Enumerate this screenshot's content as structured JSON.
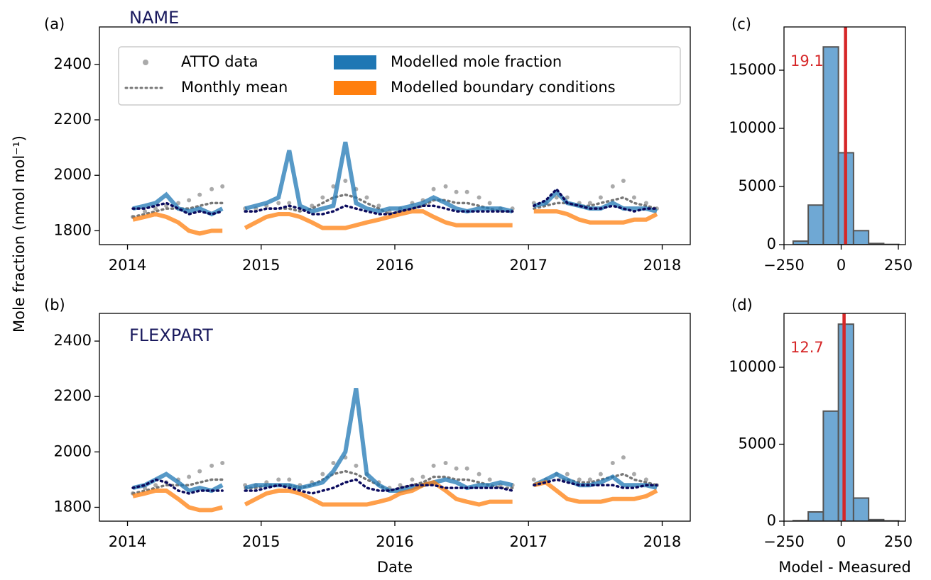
{
  "chart_data": [
    {
      "type": "line",
      "panel_label": "(a)",
      "annotation": "NAME",
      "ylabel": "Mole fraction (nmol mol⁻¹)",
      "xlim": [
        2013.79,
        2018.21
      ],
      "xticks": [
        2014,
        2015,
        2016,
        2017,
        2018
      ],
      "ylim": [
        1750,
        2535
      ],
      "yticks": [
        1800,
        2000,
        2200,
        2400
      ],
      "legend": "upper left",
      "x": [
        2014.04,
        2014.13,
        2014.21,
        2014.29,
        2014.38,
        2014.46,
        2014.54,
        2014.63,
        2014.71,
        2014.79,
        2014.88,
        2014.96,
        2015.04,
        2015.13,
        2015.21,
        2015.29,
        2015.38,
        2015.46,
        2015.54,
        2015.63,
        2015.71,
        2015.79,
        2015.88,
        2015.96,
        2016.04,
        2016.13,
        2016.21,
        2016.29,
        2016.38,
        2016.46,
        2016.54,
        2016.63,
        2016.71,
        2016.79,
        2016.88,
        2016.96,
        2017.04,
        2017.13,
        2017.21,
        2017.29,
        2017.38,
        2017.46,
        2017.54,
        2017.63,
        2017.71,
        2017.79,
        2017.88,
        2017.96
      ],
      "series": [
        {
          "name": "ATTO data",
          "style": "scatter",
          "color": "#aaaaaa",
          "values": [
            1850,
            1870,
            1880,
            1890,
            1900,
            1910,
            1930,
            1950,
            1960,
            null,
            1880,
            1880,
            1890,
            1900,
            1900,
            1880,
            1890,
            1920,
            1960,
            1980,
            1950,
            1920,
            1890,
            1870,
            1880,
            1900,
            1910,
            1950,
            1960,
            1940,
            1940,
            1920,
            1900,
            1880,
            1880,
            null,
            1900,
            1900,
            1920,
            1920,
            1900,
            1900,
            1920,
            1960,
            1980,
            1920,
            1900,
            1880
          ]
        },
        {
          "name": "Monthly mean",
          "style": "dotted",
          "color": "#777777",
          "values": [
            1850,
            1860,
            1870,
            1880,
            1880,
            1880,
            1890,
            1900,
            1900,
            null,
            1870,
            1870,
            1880,
            1880,
            1880,
            1870,
            1880,
            1900,
            1920,
            1930,
            1920,
            1900,
            1880,
            1860,
            1870,
            1880,
            1890,
            1910,
            1910,
            1900,
            1900,
            1890,
            1880,
            1870,
            1870,
            null,
            1880,
            1890,
            1900,
            1900,
            1890,
            1890,
            1900,
            1910,
            1920,
            1900,
            1890,
            1880
          ]
        },
        {
          "name": "Modelled mole fraction",
          "style": "line",
          "color": "#1f77b4",
          "values": [
            1880,
            1890,
            1900,
            1930,
            1880,
            1870,
            1880,
            1860,
            1880,
            null,
            1880,
            1890,
            1900,
            1920,
            2090,
            1890,
            1870,
            1880,
            1890,
            2120,
            1900,
            1880,
            1870,
            1880,
            1880,
            1890,
            1900,
            1920,
            1900,
            1880,
            1870,
            1880,
            1880,
            1880,
            1870,
            null,
            1890,
            1900,
            1940,
            1900,
            1890,
            1880,
            1880,
            1900,
            1880,
            1880,
            1880,
            1870
          ]
        },
        {
          "name": "Modelled boundary conditions",
          "style": "line",
          "color": "#ff7f0e",
          "values": [
            1840,
            1850,
            1860,
            1850,
            1830,
            1800,
            1790,
            1800,
            1800,
            null,
            1810,
            1830,
            1850,
            1860,
            1860,
            1850,
            1830,
            1810,
            1810,
            1810,
            1820,
            1830,
            1840,
            1850,
            1860,
            1870,
            1870,
            1850,
            1830,
            1820,
            1820,
            1820,
            1820,
            1820,
            1820,
            null,
            1870,
            1870,
            1870,
            1860,
            1840,
            1830,
            1830,
            1830,
            1830,
            1840,
            1840,
            1860
          ]
        },
        {
          "style": "dotted",
          "color": "#0b0b5e",
          "values": [
            1880,
            1880,
            1890,
            1900,
            1880,
            1860,
            1870,
            1860,
            1870,
            null,
            1870,
            1870,
            1880,
            1880,
            1890,
            1880,
            1860,
            1860,
            1870,
            1890,
            1880,
            1870,
            1860,
            1860,
            1870,
            1880,
            1890,
            1890,
            1880,
            1870,
            1870,
            1870,
            1870,
            1870,
            1870,
            null,
            1890,
            1910,
            1950,
            1900,
            1890,
            1880,
            1880,
            1890,
            1880,
            1870,
            1880,
            1880
          ]
        }
      ]
    },
    {
      "type": "line",
      "panel_label": "(b)",
      "annotation": "FLEXPART",
      "xlabel": "Date",
      "xlim": [
        2013.79,
        2018.21
      ],
      "xticks": [
        2014,
        2015,
        2016,
        2017,
        2018
      ],
      "ylim": [
        1750,
        2500
      ],
      "yticks": [
        1800,
        2000,
        2200,
        2400
      ],
      "x": [
        2014.04,
        2014.13,
        2014.21,
        2014.29,
        2014.38,
        2014.46,
        2014.54,
        2014.63,
        2014.71,
        2014.79,
        2014.88,
        2014.96,
        2015.04,
        2015.13,
        2015.21,
        2015.29,
        2015.38,
        2015.46,
        2015.54,
        2015.63,
        2015.71,
        2015.79,
        2015.88,
        2015.96,
        2016.04,
        2016.13,
        2016.21,
        2016.29,
        2016.38,
        2016.46,
        2016.54,
        2016.63,
        2016.71,
        2016.79,
        2016.88,
        2016.96,
        2017.04,
        2017.13,
        2017.21,
        2017.29,
        2017.38,
        2017.46,
        2017.54,
        2017.63,
        2017.71,
        2017.79,
        2017.88,
        2017.96
      ],
      "series": [
        {
          "style": "scatter",
          "color": "#aaaaaa",
          "values": [
            1850,
            1870,
            1880,
            1890,
            1900,
            1910,
            1930,
            1950,
            1960,
            null,
            1880,
            1880,
            1890,
            1900,
            1900,
            1880,
            1890,
            1920,
            1960,
            1980,
            1950,
            1920,
            1890,
            1870,
            1880,
            1900,
            1910,
            1950,
            1960,
            1940,
            1940,
            1920,
            1900,
            1880,
            1880,
            null,
            1900,
            1900,
            1920,
            1920,
            1900,
            1900,
            1920,
            1960,
            1980,
            1920,
            1900,
            1880
          ]
        },
        {
          "style": "dotted",
          "color": "#777777",
          "values": [
            1850,
            1860,
            1870,
            1880,
            1880,
            1880,
            1890,
            1900,
            1900,
            null,
            1870,
            1870,
            1880,
            1880,
            1880,
            1870,
            1880,
            1900,
            1920,
            1930,
            1920,
            1900,
            1880,
            1860,
            1870,
            1880,
            1890,
            1910,
            1910,
            1900,
            1900,
            1890,
            1880,
            1870,
            1870,
            null,
            1880,
            1890,
            1900,
            1900,
            1890,
            1890,
            1900,
            1910,
            1920,
            1900,
            1890,
            1880
          ]
        },
        {
          "style": "line",
          "color": "#1f77b4",
          "values": [
            1870,
            1880,
            1900,
            1920,
            1890,
            1860,
            1870,
            1860,
            1880,
            null,
            1870,
            1880,
            1880,
            1880,
            1880,
            1870,
            1880,
            1890,
            1930,
            2000,
            2230,
            1920,
            1880,
            1860,
            1860,
            1870,
            1880,
            1890,
            1900,
            1890,
            1870,
            1880,
            1880,
            1890,
            1880,
            null,
            1880,
            1900,
            1920,
            1900,
            1880,
            1880,
            1890,
            1910,
            1880,
            1880,
            1880,
            1870
          ]
        },
        {
          "style": "line",
          "color": "#ff7f0e",
          "values": [
            1840,
            1850,
            1860,
            1860,
            1830,
            1800,
            1790,
            1790,
            1800,
            null,
            1810,
            1830,
            1850,
            1860,
            1860,
            1850,
            1830,
            1810,
            1810,
            1810,
            1810,
            1810,
            1820,
            1830,
            1850,
            1860,
            1880,
            1890,
            1860,
            1830,
            1820,
            1810,
            1820,
            1820,
            1820,
            null,
            1880,
            1890,
            1860,
            1830,
            1820,
            1820,
            1820,
            1830,
            1830,
            1830,
            1840,
            1860
          ]
        },
        {
          "style": "dotted",
          "color": "#0b0b5e",
          "values": [
            1870,
            1880,
            1900,
            1890,
            1860,
            1850,
            1860,
            1860,
            1860,
            null,
            1860,
            1860,
            1870,
            1880,
            1870,
            1860,
            1850,
            1860,
            1870,
            1890,
            1900,
            1870,
            1860,
            1860,
            1870,
            1880,
            1880,
            1880,
            1870,
            1870,
            1870,
            1870,
            1870,
            1870,
            1860,
            null,
            1880,
            1890,
            1900,
            1890,
            1880,
            1880,
            1880,
            1880,
            1870,
            1870,
            1880,
            1880
          ]
        }
      ]
    },
    {
      "type": "histogram",
      "panel_label": "(c)",
      "color": "#6fa8d4",
      "edgecolor": "#555555",
      "xlim": [
        -250,
        281
      ],
      "xticks": [
        {
          "value": -250,
          "label": "−250"
        },
        0,
        250
      ],
      "ylim": [
        0,
        18720
      ],
      "yticks": [
        0,
        5000,
        10000,
        15000
      ],
      "bins": [
        -210,
        -144,
        -78,
        -12,
        54,
        120,
        186,
        252
      ],
      "counts": [
        300,
        3400,
        17000,
        7900,
        1200,
        100,
        20
      ],
      "mean": 19.1,
      "mean_color": "#d62728"
    },
    {
      "type": "histogram",
      "panel_label": "(d)",
      "xlabel": "Model - Measured",
      "color": "#6fa8d4",
      "edgecolor": "#555555",
      "xlim": [
        -250,
        281
      ],
      "xticks": [
        {
          "value": -250,
          "label": "−250"
        },
        0,
        250
      ],
      "ylim": [
        0,
        13500
      ],
      "yticks": [
        0,
        5000,
        10000
      ],
      "bins": [
        -210,
        -144,
        -78,
        -12,
        54,
        120,
        186,
        252
      ],
      "counts": [
        30,
        600,
        7150,
        12800,
        1500,
        100,
        20
      ],
      "mean": 12.7,
      "mean_color": "#d62728"
    }
  ]
}
